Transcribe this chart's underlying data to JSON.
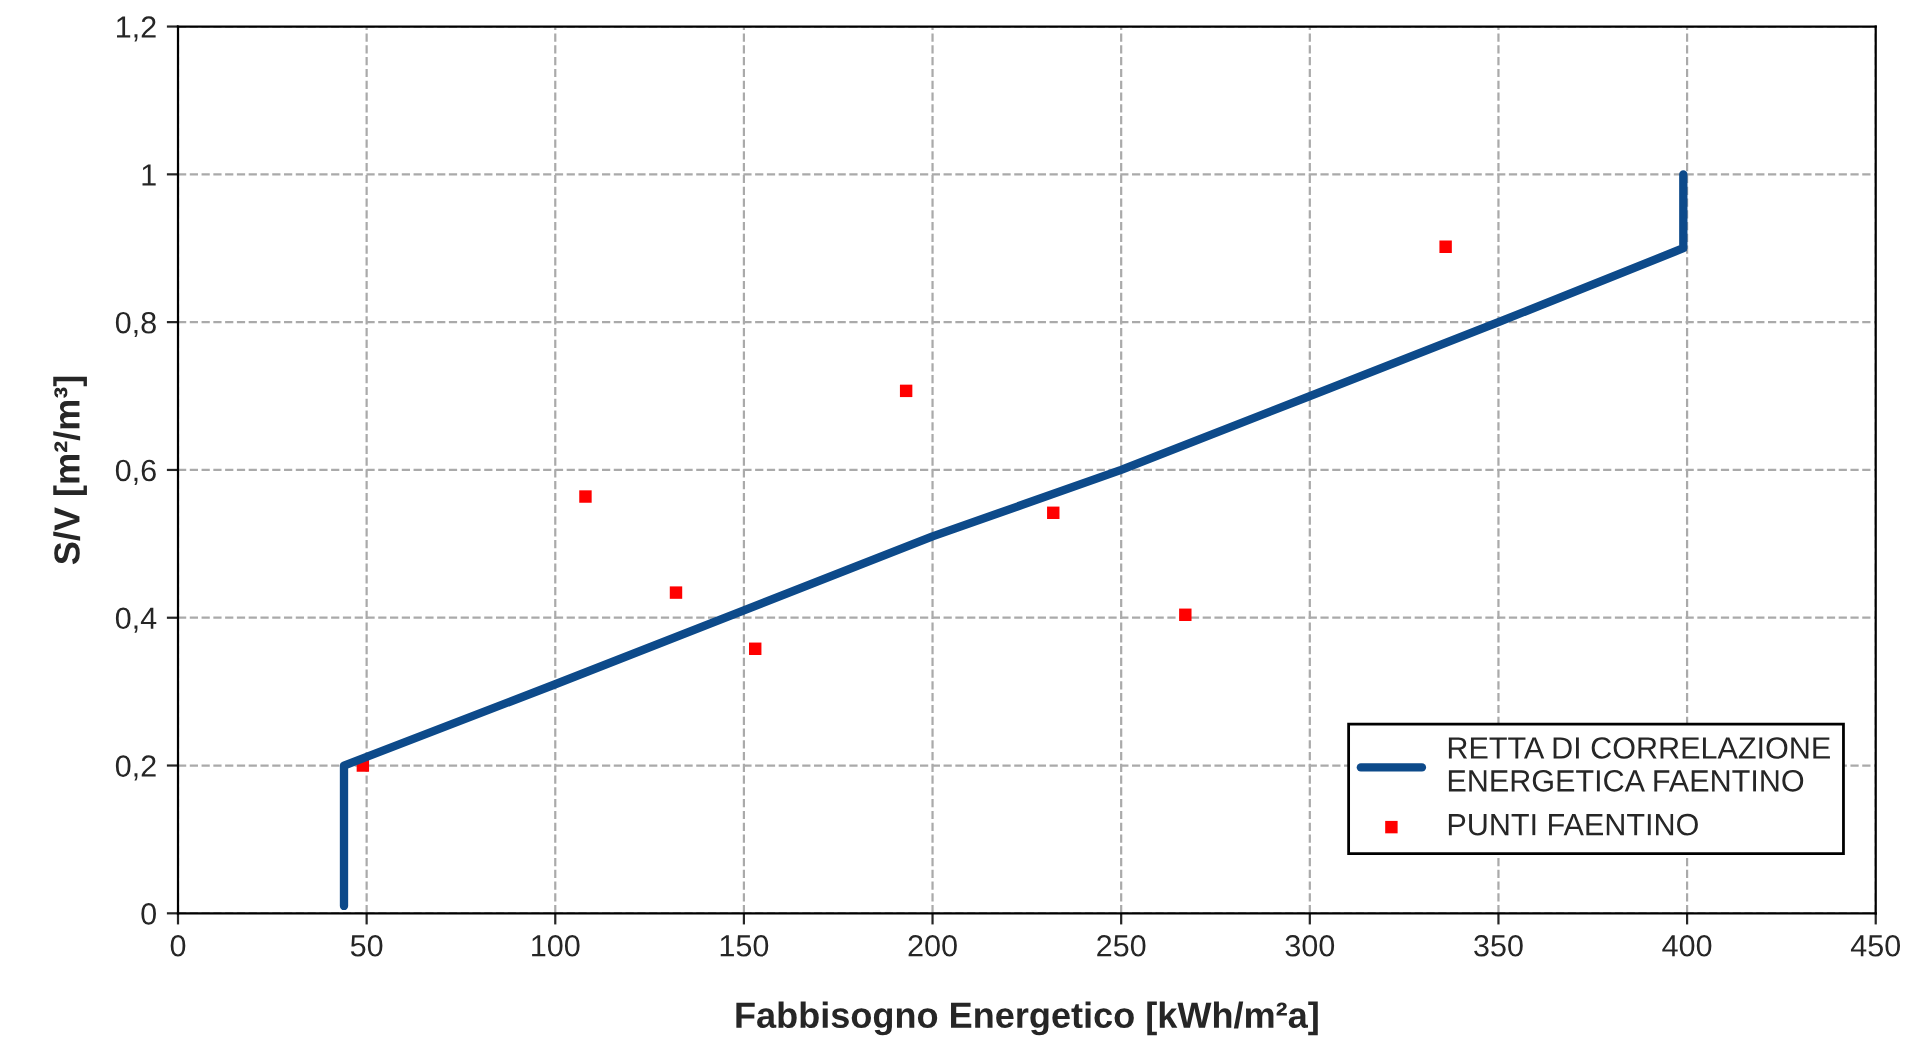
{
  "chart_data": {
    "type": "line",
    "xlabel": "Fabbisogno Energetico [kWh/m²a]",
    "ylabel": "S/V [m²/m³]",
    "xlim": [
      0,
      450
    ],
    "xticks": [
      0,
      50,
      100,
      150,
      200,
      250,
      300,
      350,
      400,
      450
    ],
    "ylim": [
      0,
      1.2
    ],
    "yticks": [
      0,
      {
        "value": 0.2,
        "label": "0,2"
      },
      {
        "value": 0.4,
        "label": "0,4"
      },
      {
        "value": 0.6,
        "label": "0,6"
      },
      {
        "value": 0.8,
        "label": "0,8"
      },
      1,
      {
        "value": 1.2,
        "label": "1,2"
      }
    ],
    "grid": true,
    "legend": "bottom right",
    "series": [
      {
        "name": "RETTA DI CORRELAZIONE\nENERGETICA FAENTINO",
        "color": "#0d4a8a",
        "marker": "none",
        "line_style": "solid",
        "x": [
          44,
          44,
          100,
          150,
          200,
          250,
          300,
          350,
          399,
          399
        ],
        "values": [
          0.01,
          0.2,
          0.31,
          0.41,
          0.51,
          0.6,
          0.7,
          0.8,
          0.9,
          1.0
        ]
      },
      {
        "name": "PUNTI FAENTINO",
        "type": "scatter",
        "color": "#ff0000",
        "marker": "square",
        "x": [
          49,
          108,
          132,
          153,
          193,
          232,
          267,
          336
        ],
        "values": [
          0.2,
          0.564,
          0.434,
          0.358,
          0.707,
          0.542,
          0.404,
          0.902
        ]
      }
    ]
  }
}
